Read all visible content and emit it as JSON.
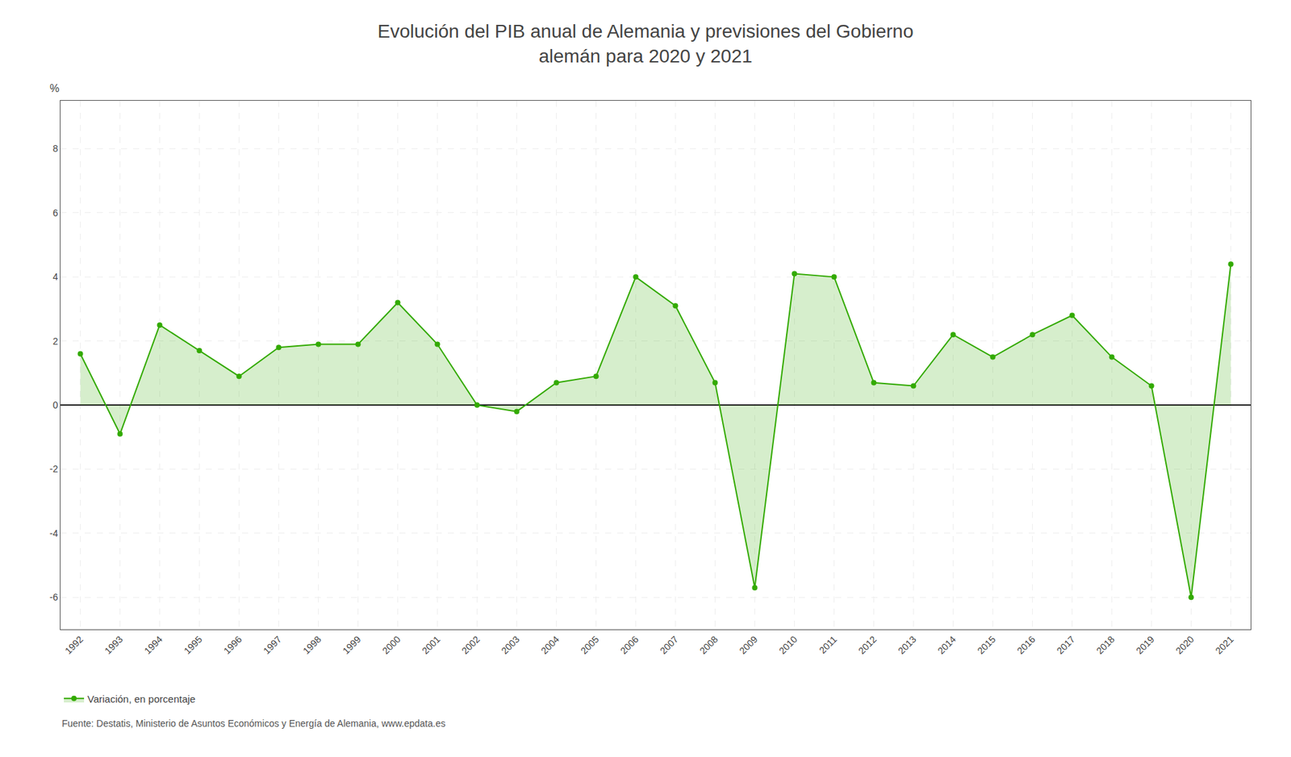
{
  "chart_data": {
    "type": "area",
    "title": "Evolución del PIB anual de Alemania y previsiones del Gobierno\nalemán para 2020 y 2021",
    "ylabel": "%",
    "x": [
      1992,
      1993,
      1994,
      1995,
      1996,
      1997,
      1998,
      1999,
      2000,
      2001,
      2002,
      2003,
      2004,
      2005,
      2006,
      2007,
      2008,
      2009,
      2010,
      2011,
      2012,
      2013,
      2014,
      2015,
      2016,
      2017,
      2018,
      2019,
      2020,
      2021
    ],
    "series": [
      {
        "name": "Variación, en porcentaje",
        "color": "#33aa00",
        "marker": "circle",
        "values": [
          1.6,
          -0.9,
          2.5,
          1.7,
          0.9,
          1.8,
          1.9,
          1.9,
          3.2,
          1.9,
          0.0,
          -0.2,
          0.7,
          0.9,
          4.0,
          3.1,
          0.7,
          -5.7,
          4.1,
          4.0,
          0.7,
          0.6,
          2.2,
          1.5,
          2.2,
          2.8,
          1.5,
          0.6,
          -6.0,
          4.4
        ]
      }
    ],
    "xlim": [
      1991.5,
      2021.5
    ],
    "xticks": [
      1992,
      1993,
      1994,
      1995,
      1996,
      1997,
      1998,
      1999,
      2000,
      2001,
      2002,
      2003,
      2004,
      2005,
      2006,
      2007,
      2008,
      2009,
      2010,
      2011,
      2012,
      2013,
      2014,
      2015,
      2016,
      2017,
      2018,
      2019,
      2020,
      2021
    ],
    "ylim": [
      -7.0,
      9.5
    ],
    "yticks": [
      -6,
      -4,
      -2,
      0,
      2,
      4,
      6,
      8
    ],
    "grid": true,
    "legend": "bottom left",
    "annotations": [
      "Fuente: Destatis, Ministerio de Asuntos Económicos y Energía de Alemania, www.epdata.es"
    ]
  }
}
